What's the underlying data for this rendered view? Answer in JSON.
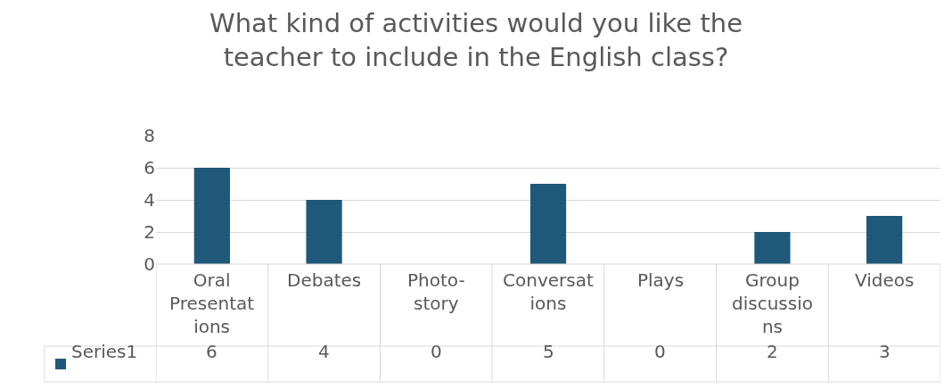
{
  "chart_data": {
    "type": "bar",
    "title": "What kind of activities would you like the teacher to include in the English class?",
    "categories": [
      "Oral Presentations",
      "Debates",
      "Photo-story",
      "Conversations",
      "Plays",
      "Group discussions",
      "Videos"
    ],
    "series": [
      {
        "name": "Series1",
        "color": "#1f5879",
        "values": [
          6,
          4,
          0,
          5,
          0,
          2,
          3
        ]
      }
    ],
    "ylim": [
      0,
      8
    ],
    "yticks": [
      0,
      2,
      4,
      6,
      8
    ],
    "grid": "y",
    "data_labels": true
  }
}
